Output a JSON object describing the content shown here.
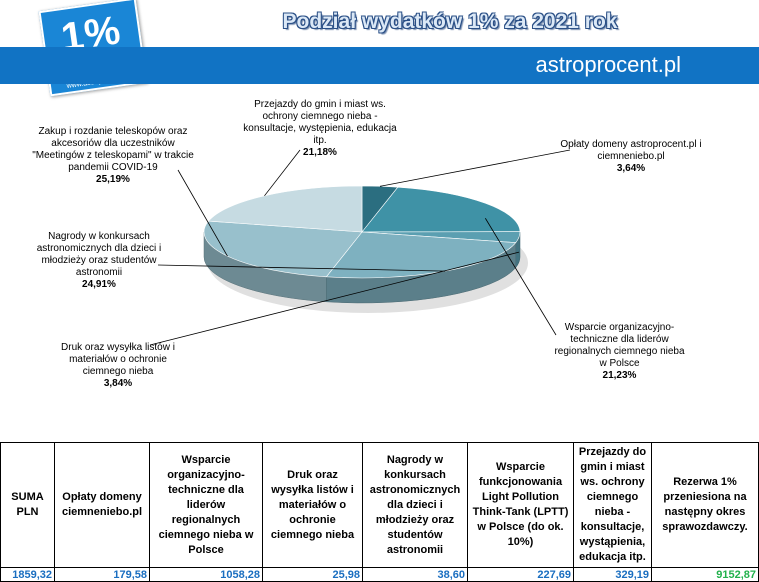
{
  "header": {
    "logo_text": "1%",
    "logo_url": "www.astroprocent.pl",
    "title": "Podział wydatków 1% za 2021 rok",
    "banner_text": "astroprocent.pl"
  },
  "colors": {
    "banner": "#1173c4",
    "table_values": "#1a6ec0",
    "reserve_value": "#22b14c"
  },
  "chart_data": {
    "type": "pie",
    "labels": [
      "Opłaty domeny astroprocent.pl i ciemneniebo.pl",
      "Wsparcie organizacyjno-techniczne dla liderów regionalnych ciemnego nieba w Polsce",
      "Druk oraz wysyłka listów i materiałów o ochronie ciemnego nieba",
      "Nagrody w konkursach astronomicznych dla dzieci i młodzieży oraz studentów astronomii",
      "Zakup i rozdanie teleskopów oraz akcesoriów dla uczestników \"Meetingów z teleskopami\" w trakcie pandemii COVID-19",
      "Przejazdy do gmin i miast ws. ochrony ciemnego nieba - konsultacje, występienia, edukacja itp."
    ],
    "values": [
      3.64,
      21.23,
      3.84,
      24.91,
      25.19,
      21.18
    ],
    "value_labels": [
      "3,64%",
      "21,23%",
      "3,84%",
      "24,91%",
      "25,19%",
      "21,18%"
    ],
    "colors": [
      "#2b6e80",
      "#3c8ea1",
      "#8dbac8",
      "#a3c6d2",
      "#b8d3dc",
      "#c9dde4"
    ],
    "slice_colors_visible": [
      "#2b6e80",
      "#3f92a6",
      "#5b9fb1",
      "#7eb1c0",
      "#98c0cc",
      "#c6dbe2"
    ]
  },
  "table": {
    "headers": [
      "SUMA PLN",
      "Opłaty domeny ciemneniebo.pl",
      "Wsparcie organizacyjno-techniczne dla liderów regionalnych ciemnego nieba w Polsce",
      "Druk oraz wysyłka listów i materiałów o ochronie ciemnego nieba",
      "Nagrody w konkursach astronomicznych dla dzieci i młodzieży oraz studentów astronomii",
      "Wsparcie funkcjonowania Light Pollution Think-Tank (LPTT) w Polsce (do ok. 10%)",
      "Przejazdy do gmin i miast ws. ochrony ciemnego nieba - konsultacje, wystąpienia, edukacja itp.",
      "Rezerwa 1% przeniesiona na następny okres sprawozdawczy."
    ],
    "values": [
      "1859,32",
      "179,58",
      "1058,28",
      "25,98",
      "38,60",
      "227,69",
      "329,19",
      "9152,87"
    ]
  }
}
